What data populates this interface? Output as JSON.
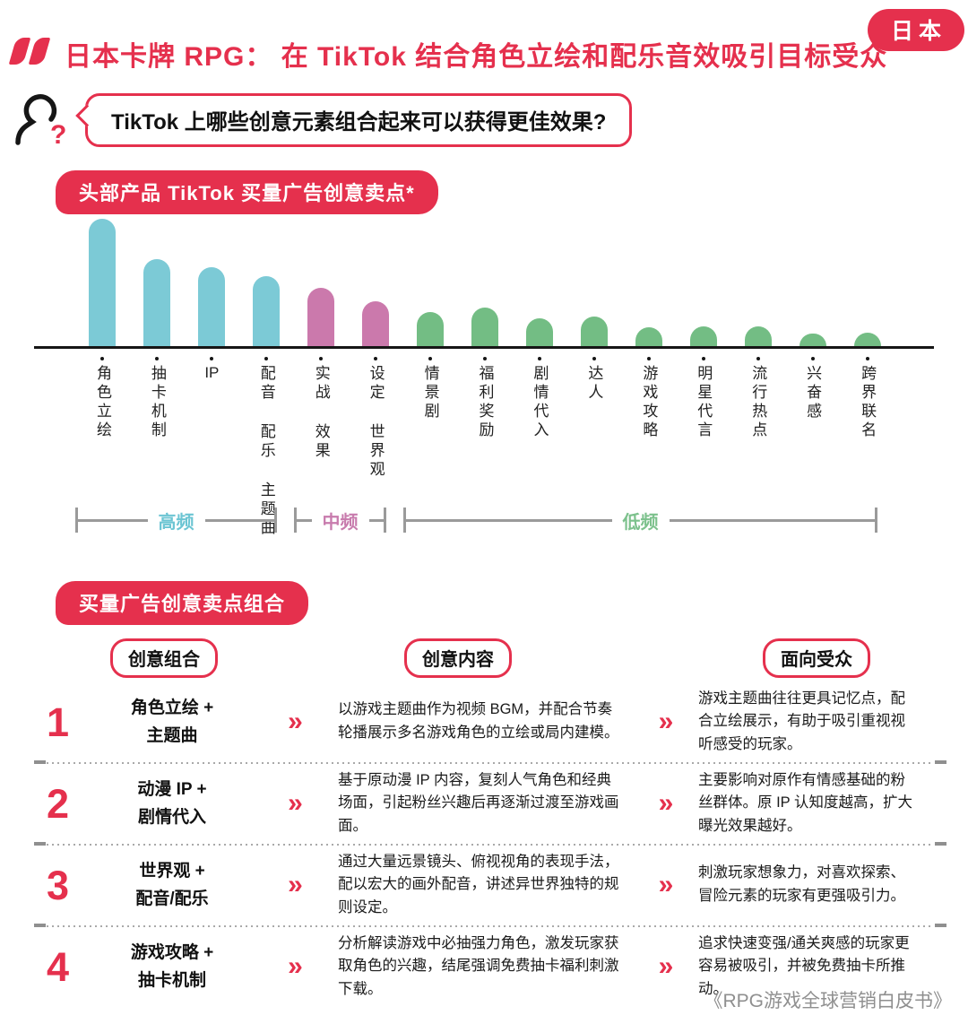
{
  "header": {
    "region_badge": "日本",
    "title": "日本卡牌 RPG： 在 TikTok 结合角色立绘和配乐音效吸引目标受众",
    "question": "TikTok 上哪些创意元素组合起来可以获得更佳效果?"
  },
  "colors": {
    "accent": "#e5304d",
    "teal_bar": "#7ccad6",
    "pink_bar": "#cb79ac",
    "green_bar": "#73bd84",
    "bracket_gray": "#9a9a9a",
    "footer_gray": "#8f8f8f"
  },
  "icons": {
    "chevron": "»"
  },
  "chart_data": {
    "type": "bar",
    "title": "头部产品 TikTok 买量广告创意卖点*",
    "categories": [
      "角色立绘",
      "抽卡机制",
      "IP",
      "配音 配乐 主题曲",
      "实战 效果",
      "设定 世界观",
      "情景剧",
      "福利奖励",
      "剧情代入",
      "达人",
      "游戏攻略",
      "明星代言",
      "流行热点",
      "兴奋感",
      "跨界联名"
    ],
    "values_relative": [
      100,
      68,
      62,
      55,
      46,
      35,
      27,
      30,
      22,
      23,
      15,
      15.5,
      15.5,
      10,
      10.5
    ],
    "value_note": "relative frequency, no numeric y-axis shown",
    "xlabel": "",
    "ylabel": "",
    "grid": false,
    "legend_position": "none",
    "groups": [
      {
        "label": "高频",
        "color": "#7ccad6",
        "label_color": "#6cc5d3",
        "from": 0,
        "to": 3
      },
      {
        "label": "中频",
        "color": "#cb79ac",
        "label_color": "#c87bad",
        "from": 4,
        "to": 5
      },
      {
        "label": "低频",
        "color": "#73bd84",
        "label_color": "#7cc18c",
        "from": 6,
        "to": 14
      }
    ]
  },
  "combo_section": {
    "title": "买量广告创意卖点组合",
    "columns": [
      "创意组合",
      "创意内容",
      "面向受众"
    ],
    "rows": [
      {
        "num": "1",
        "combo": "角色立绘 +\n主题曲",
        "content": "以游戏主题曲作为视频 BGM，并配合节奏轮播展示多名游戏角色的立绘或局内建模。",
        "audience": "游戏主题曲往往更具记忆点，配合立绘展示，有助于吸引重视视听感受的玩家。"
      },
      {
        "num": "2",
        "combo": "动漫 IP +\n剧情代入",
        "content": "基于原动漫 IP 内容，复刻人气角色和经典场面，引起粉丝兴趣后再逐渐过渡至游戏画面。",
        "audience": "主要影响对原作有情感基础的粉丝群体。原 IP 认知度越高，扩大曝光效果越好。"
      },
      {
        "num": "3",
        "combo": "世界观 +\n配音/配乐",
        "content": "通过大量远景镜头、俯视视角的表现手法，配以宏大的画外配音，讲述异世界独特的规则设定。",
        "audience": "刺激玩家想象力，对喜欢探索、冒险元素的玩家有更强吸引力。"
      },
      {
        "num": "4",
        "combo": "游戏攻略 +\n抽卡机制",
        "content": "分析解读游戏中必抽强力角色，激发玩家获取角色的兴趣，结尾强调免费抽卡福利刺激下载。",
        "audience": "追求快速变强/通关爽感的玩家更容易被吸引，并被免费抽卡所推动。"
      }
    ]
  },
  "footer": {
    "source": "《RPG游戏全球营销白皮书》"
  }
}
